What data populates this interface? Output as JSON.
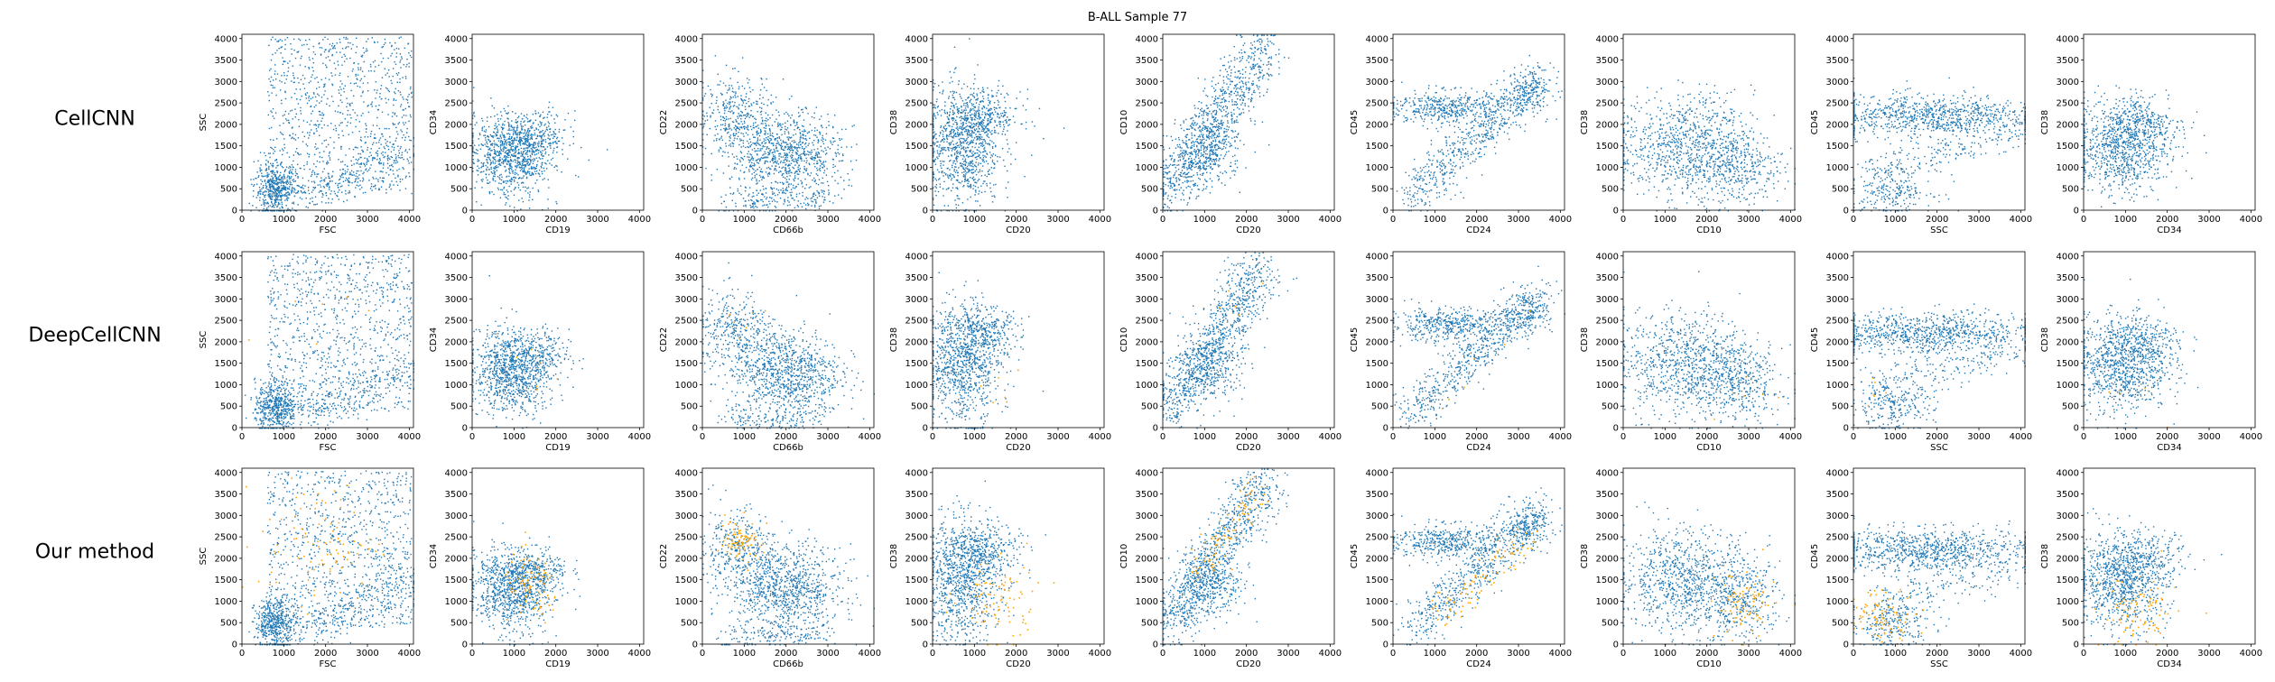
{
  "figure": {
    "title": "B-ALL Sample 77",
    "row_labels": [
      "CellCNN",
      "DeepCellCNN",
      "Our method"
    ]
  },
  "colors": {
    "cells": "#1f77b4",
    "selected": "#ffa500"
  },
  "chart_data": {
    "type": "scatter",
    "grid": false,
    "legend": "none",
    "xlim": [
      0,
      4100
    ],
    "ylim": [
      0,
      4100
    ],
    "ticks": [
      0,
      500,
      1000,
      1500,
      2000,
      2500,
      3000,
      3500,
      4000
    ],
    "x_ticks": [
      0,
      1000,
      2000,
      3000,
      4000
    ],
    "y_ticks": [
      0,
      500,
      1000,
      1500,
      2000,
      2500,
      3000,
      3500,
      4000
    ],
    "panels": [
      {
        "xlabel": "FSC",
        "ylabel": "SSC"
      },
      {
        "xlabel": "CD19",
        "ylabel": "CD34"
      },
      {
        "xlabel": "CD66b",
        "ylabel": "CD22"
      },
      {
        "xlabel": "CD20",
        "ylabel": "CD38"
      },
      {
        "xlabel": "CD20",
        "ylabel": "CD10"
      },
      {
        "xlabel": "CD24",
        "ylabel": "CD45"
      },
      {
        "xlabel": "CD10",
        "ylabel": "CD38"
      },
      {
        "xlabel": "SSC",
        "ylabel": "CD45"
      },
      {
        "xlabel": "CD34",
        "ylabel": "CD38"
      }
    ],
    "selected_cells_by_row": [
      "none",
      "few",
      "many"
    ]
  }
}
